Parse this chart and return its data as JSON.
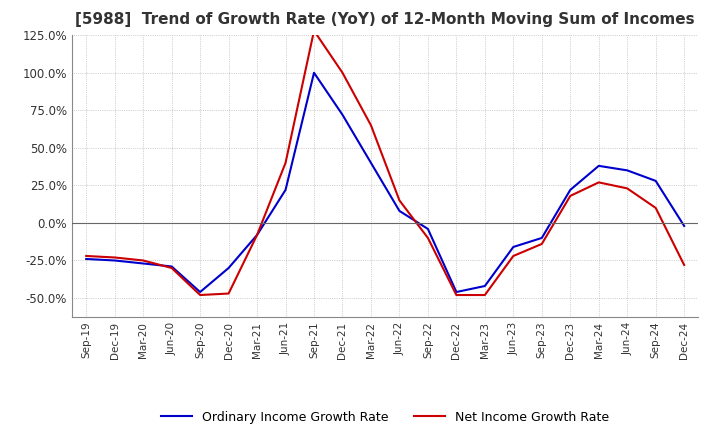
{
  "title": "[5988]  Trend of Growth Rate (YoY) of 12-Month Moving Sum of Incomes",
  "title_fontsize": 11,
  "background_color": "#ffffff",
  "grid_color": "#aaaaaa",
  "ordinary_income_color": "#0000cc",
  "net_income_color": "#cc0000",
  "legend_labels": [
    "Ordinary Income Growth Rate",
    "Net Income Growth Rate"
  ],
  "dates": [
    "Sep-19",
    "Dec-19",
    "Mar-20",
    "Jun-20",
    "Sep-20",
    "Dec-20",
    "Mar-21",
    "Jun-21",
    "Sep-21",
    "Dec-21",
    "Mar-22",
    "Jun-22",
    "Sep-22",
    "Dec-22",
    "Mar-23",
    "Jun-23",
    "Sep-23",
    "Dec-23",
    "Mar-24",
    "Jun-24",
    "Sep-24",
    "Dec-24"
  ],
  "ordinary_income": [
    -0.24,
    -0.25,
    -0.27,
    -0.29,
    -0.46,
    -0.3,
    -0.08,
    0.22,
    1.0,
    0.72,
    0.4,
    0.08,
    -0.04,
    -0.46,
    -0.42,
    -0.16,
    -0.1,
    0.22,
    0.38,
    0.35,
    0.28,
    -0.02
  ],
  "net_income": [
    -0.22,
    -0.23,
    -0.25,
    -0.3,
    -0.48,
    -0.47,
    -0.08,
    0.4,
    1.28,
    1.0,
    0.65,
    0.15,
    -0.1,
    -0.48,
    -0.48,
    -0.22,
    -0.14,
    0.18,
    0.27,
    0.23,
    0.1,
    -0.28
  ],
  "ylim": [
    -0.625,
    0.145
  ],
  "yticks": [
    -0.5,
    -0.25,
    0.0,
    0.25,
    0.5,
    0.75,
    1.0,
    1.25
  ]
}
